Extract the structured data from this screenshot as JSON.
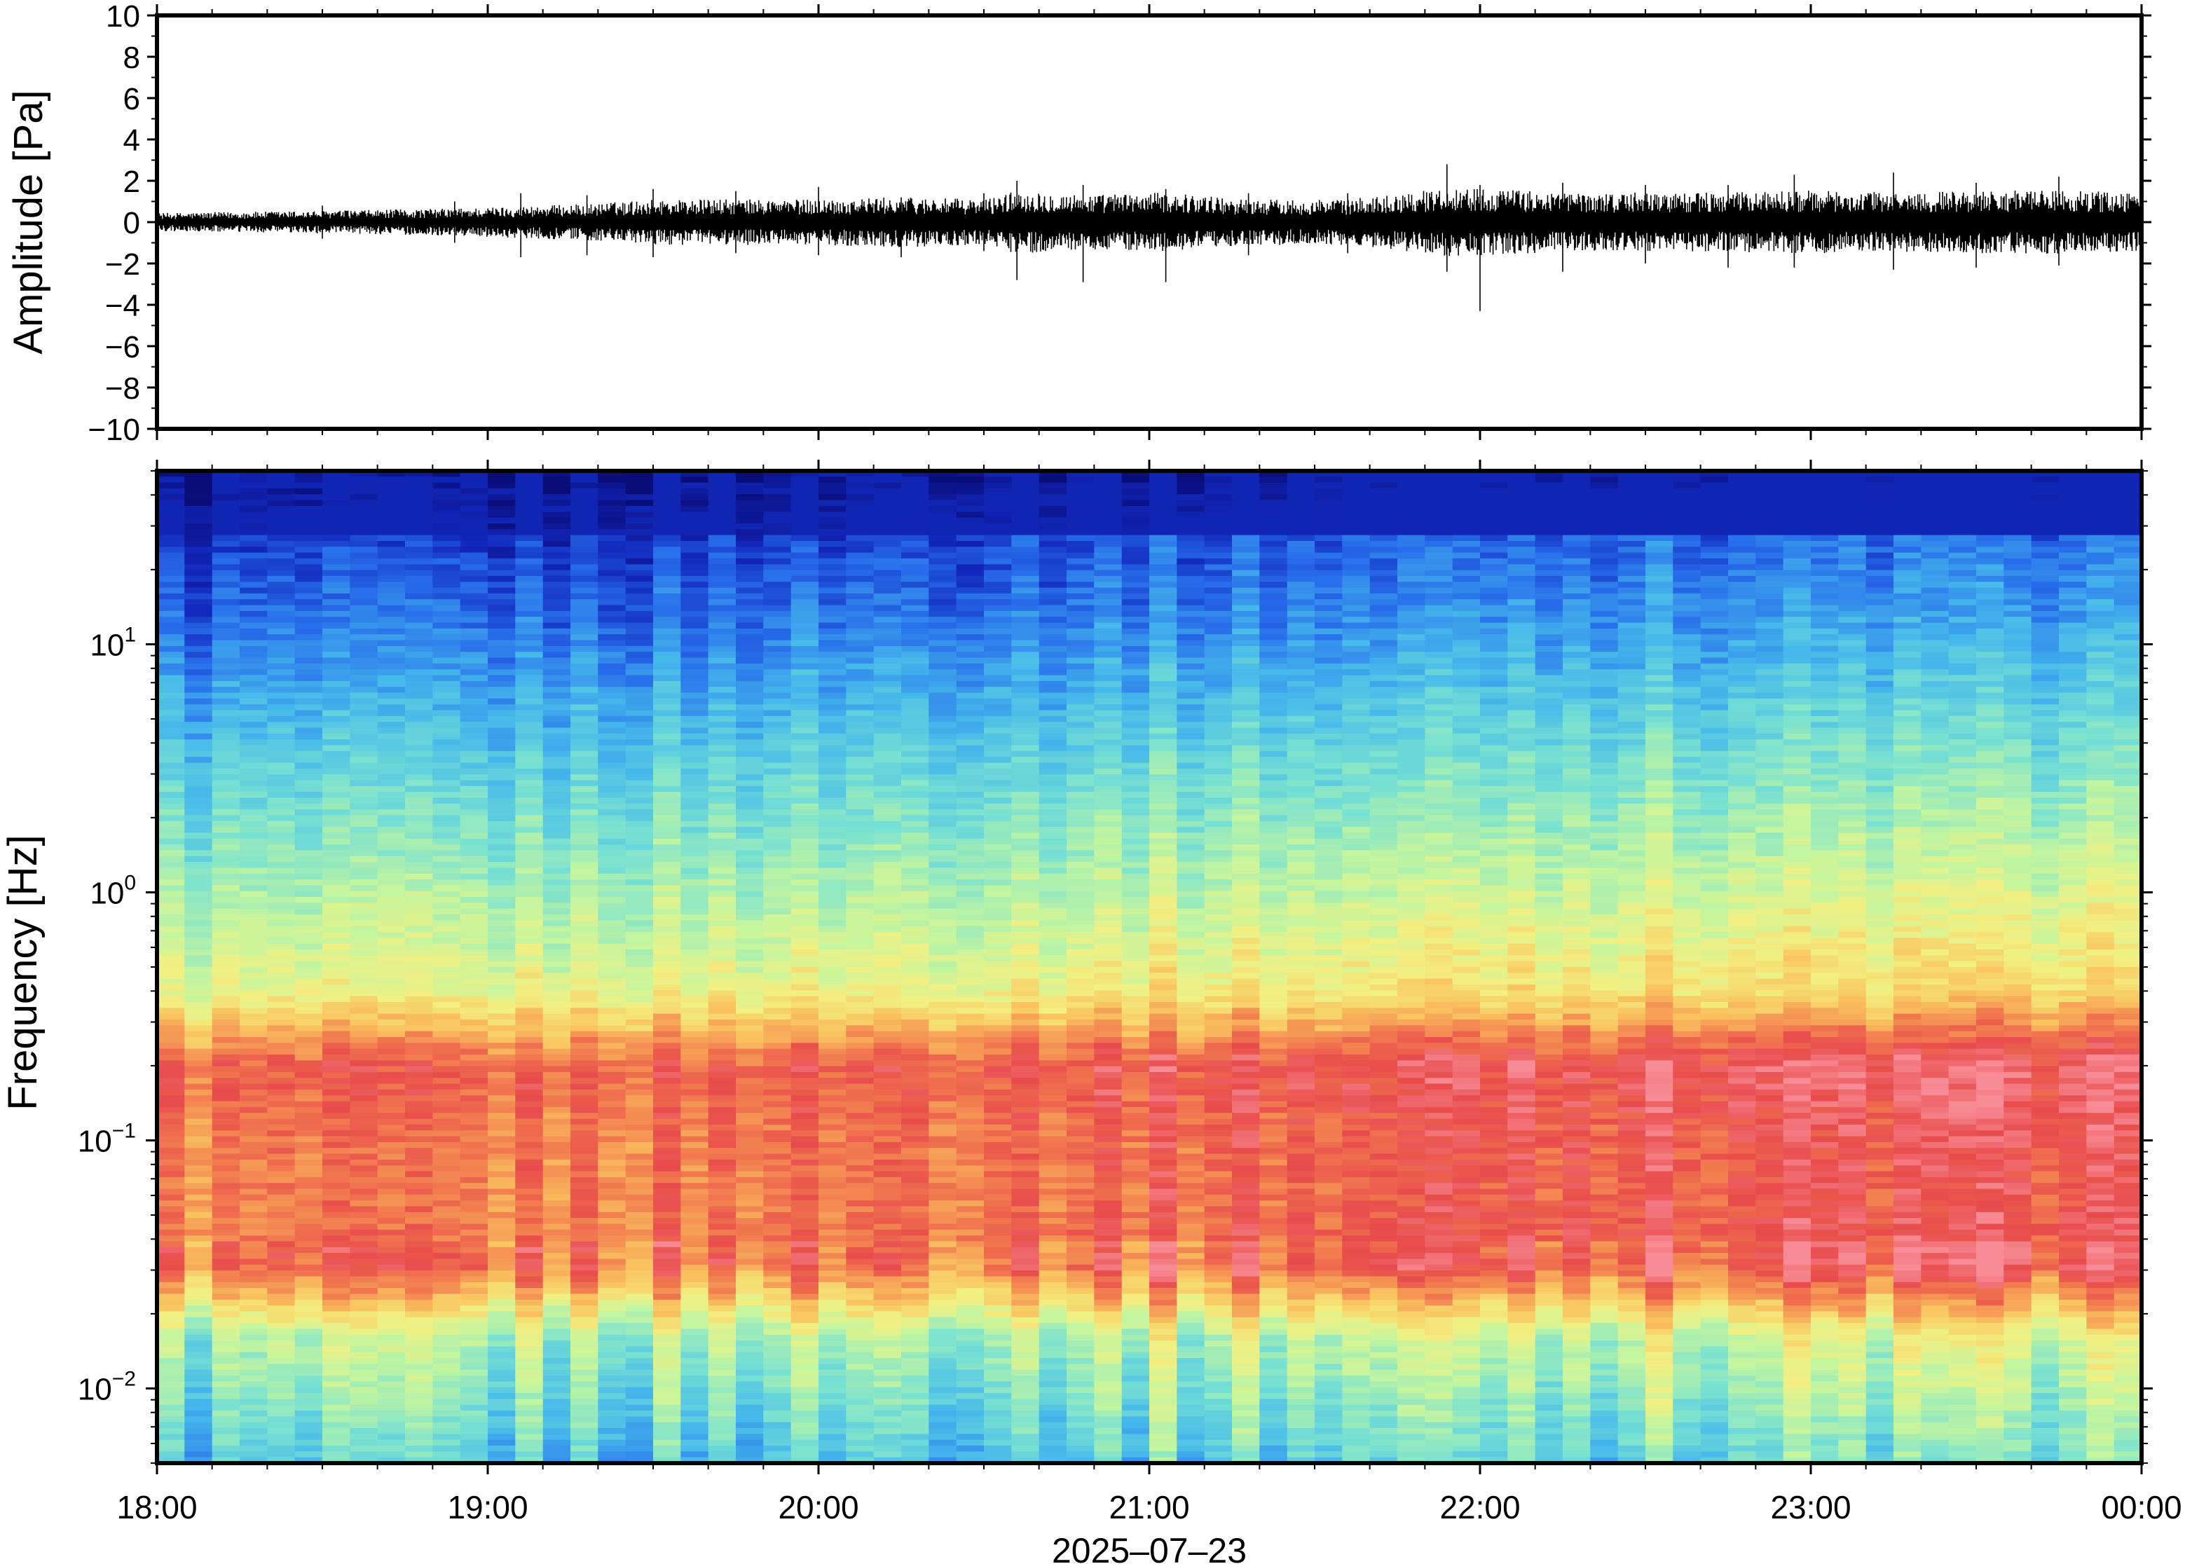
{
  "chart_data": [
    {
      "type": "line",
      "title": "",
      "ylabel": "Amplitude [Pa]",
      "xlabel": "",
      "ylim": [
        -10,
        10
      ],
      "yticks": [
        10,
        8,
        6,
        4,
        2,
        0,
        -2,
        -4,
        -6,
        -8,
        -10
      ],
      "ytick_labels": [
        "10",
        "8",
        "6",
        "4",
        "2",
        "0",
        "−2",
        "−4",
        "−6",
        "−8",
        "−10"
      ],
      "x_unit": "hours",
      "xlim": [
        18,
        24
      ],
      "series": [
        {
          "x": [
            18.0,
            18.5,
            18.9,
            19.1,
            19.3,
            19.5,
            19.75,
            20.0,
            20.25,
            20.5,
            20.6,
            20.8,
            21.05,
            21.3,
            21.6,
            21.9,
            22.0,
            22.25,
            22.5,
            22.75,
            22.95,
            23.25,
            23.5,
            23.75,
            24.0
          ],
          "y_envelope_max": [
            0.4,
            0.5,
            0.6,
            0.7,
            0.8,
            1.0,
            1.0,
            1.0,
            1.1,
            1.0,
            1.4,
            1.2,
            1.3,
            1.0,
            1.0,
            1.5,
            1.5,
            1.3,
            1.3,
            1.3,
            1.4,
            1.3,
            1.4,
            1.4,
            1.3
          ],
          "y_peak": [
            0.7,
            0.8,
            1.0,
            1.4,
            1.3,
            1.6,
            1.5,
            1.7,
            1.2,
            1.4,
            2.0,
            1.8,
            1.6,
            1.4,
            1.4,
            2.8,
            1.8,
            1.9,
            1.8,
            1.8,
            2.3,
            2.4,
            1.9,
            2.2,
            1.6
          ],
          "y_trough": [
            -0.7,
            -0.8,
            -1.0,
            -1.7,
            -1.6,
            -1.7,
            -1.5,
            -1.6,
            -1.7,
            -1.4,
            -2.8,
            -2.9,
            -2.9,
            -1.6,
            -1.5,
            -2.4,
            -4.3,
            -2.4,
            -2.0,
            -2.2,
            -2.2,
            -2.3,
            -2.2,
            -2.1,
            -1.4
          ]
        }
      ]
    },
    {
      "type": "heatmap",
      "title": "",
      "ylabel": "Frequency [Hz]",
      "xlabel": "2025–07–23",
      "yscale": "log",
      "ylim": [
        0.005,
        50
      ],
      "yticks": [
        {
          "base": "10",
          "exp": "1",
          "value": 10
        },
        {
          "base": "10",
          "exp": "0",
          "value": 1
        },
        {
          "base": "10",
          "exp": "−1",
          "value": 0.1
        },
        {
          "base": "10",
          "exp": "−2",
          "value": 0.01
        }
      ],
      "xticks": [
        "18:00",
        "19:00",
        "20:00",
        "21:00",
        "22:00",
        "23:00",
        "00:00"
      ],
      "colormap": "rainbow (low power dark blue → high power red/pink)",
      "colors": [
        "#0a0f8a",
        "#1a3fd8",
        "#3aa0f0",
        "#70d8e0",
        "#bff0a8",
        "#f0f080",
        "#f8c060",
        "#f08050",
        "#e84848",
        "#f47070",
        "#f8a0a8"
      ]
    }
  ]
}
